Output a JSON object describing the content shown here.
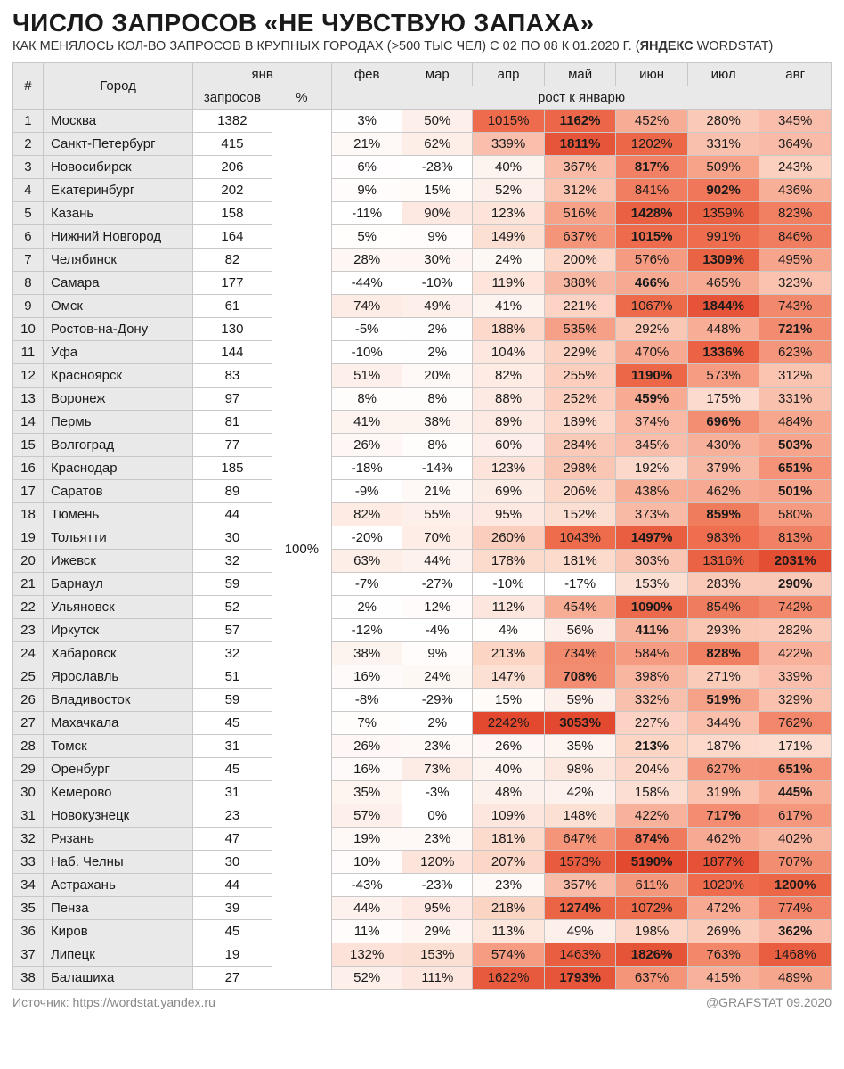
{
  "title": "ЧИСЛО ЗАПРОСОВ «НЕ ЧУВСТВУЮ ЗАПАХА»",
  "subtitle_plain": "КАК МЕНЯЛОСЬ КОЛ-ВО ЗАПРОСОВ В КРУПНЫХ ГОРОДАХ (>500 ТЫС ЧЕЛ) С 02 ПО 08 К 01.2020 Г. (",
  "subtitle_bold": "ЯНДЕКС",
  "subtitle_tail": " WORDSTAT)",
  "headers": {
    "num": "#",
    "city": "Город",
    "jan": "янв",
    "requests": "запросов",
    "pct": "%",
    "growth": "рост к январю",
    "months": [
      "фев",
      "мар",
      "апр",
      "май",
      "июн",
      "июл",
      "авг"
    ]
  },
  "base_pct": "100%",
  "heat": {
    "min_color": "#ffffff",
    "low_color": "#fde9e3",
    "mid_color": "#f8b69f",
    "high_color": "#ee6c4d",
    "max_color": "#e2492f",
    "min": -50,
    "max": 2200
  },
  "rows": [
    {
      "n": 1,
      "city": "Москва",
      "req": 1382,
      "v": [
        3,
        50,
        1015,
        1162,
        452,
        280,
        345
      ]
    },
    {
      "n": 2,
      "city": "Санкт-Петербург",
      "req": 415,
      "v": [
        21,
        62,
        339,
        1811,
        1202,
        331,
        364
      ]
    },
    {
      "n": 3,
      "city": "Новосибирск",
      "req": 206,
      "v": [
        6,
        -28,
        40,
        367,
        817,
        509,
        243
      ]
    },
    {
      "n": 4,
      "city": "Екатеринбург",
      "req": 202,
      "v": [
        9,
        15,
        52,
        312,
        841,
        902,
        436
      ]
    },
    {
      "n": 5,
      "city": "Казань",
      "req": 158,
      "v": [
        -11,
        90,
        123,
        516,
        1428,
        1359,
        823
      ]
    },
    {
      "n": 6,
      "city": "Нижний Новгород",
      "req": 164,
      "v": [
        5,
        9,
        149,
        637,
        1015,
        991,
        846
      ]
    },
    {
      "n": 7,
      "city": "Челябинск",
      "req": 82,
      "v": [
        28,
        30,
        24,
        200,
        576,
        1309,
        495
      ]
    },
    {
      "n": 8,
      "city": "Самара",
      "req": 177,
      "v": [
        -44,
        -10,
        119,
        388,
        466,
        465,
        323
      ]
    },
    {
      "n": 9,
      "city": "Омск",
      "req": 61,
      "v": [
        74,
        49,
        41,
        221,
        1067,
        1844,
        743
      ]
    },
    {
      "n": 10,
      "city": "Ростов-на-Дону",
      "req": 130,
      "v": [
        -5,
        2,
        188,
        535,
        292,
        448,
        721
      ]
    },
    {
      "n": 11,
      "city": "Уфа",
      "req": 144,
      "v": [
        -10,
        2,
        104,
        229,
        470,
        1336,
        623
      ]
    },
    {
      "n": 12,
      "city": "Красноярск",
      "req": 83,
      "v": [
        51,
        20,
        82,
        255,
        1190,
        573,
        312
      ]
    },
    {
      "n": 13,
      "city": "Воронеж",
      "req": 97,
      "v": [
        8,
        8,
        88,
        252,
        459,
        175,
        331
      ]
    },
    {
      "n": 14,
      "city": "Пермь",
      "req": 81,
      "v": [
        41,
        38,
        89,
        189,
        374,
        696,
        484
      ]
    },
    {
      "n": 15,
      "city": "Волгоград",
      "req": 77,
      "v": [
        26,
        8,
        60,
        284,
        345,
        430,
        503
      ]
    },
    {
      "n": 16,
      "city": "Краснодар",
      "req": 185,
      "v": [
        -18,
        -14,
        123,
        298,
        192,
        379,
        651
      ]
    },
    {
      "n": 17,
      "city": "Саратов",
      "req": 89,
      "v": [
        -9,
        21,
        69,
        206,
        438,
        462,
        501
      ]
    },
    {
      "n": 18,
      "city": "Тюмень",
      "req": 44,
      "v": [
        82,
        55,
        95,
        152,
        373,
        859,
        580
      ]
    },
    {
      "n": 19,
      "city": "Тольятти",
      "req": 30,
      "v": [
        -20,
        70,
        260,
        1043,
        1497,
        983,
        813
      ]
    },
    {
      "n": 20,
      "city": "Ижевск",
      "req": 32,
      "v": [
        63,
        44,
        178,
        181,
        303,
        1316,
        2031
      ]
    },
    {
      "n": 21,
      "city": "Барнаул",
      "req": 59,
      "v": [
        -7,
        -27,
        -10,
        -17,
        153,
        283,
        290
      ]
    },
    {
      "n": 22,
      "city": "Ульяновск",
      "req": 52,
      "v": [
        2,
        12,
        112,
        454,
        1090,
        854,
        742
      ]
    },
    {
      "n": 23,
      "city": "Иркутск",
      "req": 57,
      "v": [
        -12,
        -4,
        4,
        56,
        411,
        293,
        282
      ]
    },
    {
      "n": 24,
      "city": "Хабаровск",
      "req": 32,
      "v": [
        38,
        9,
        213,
        734,
        584,
        828,
        422
      ]
    },
    {
      "n": 25,
      "city": "Ярославль",
      "req": 51,
      "v": [
        16,
        24,
        147,
        708,
        398,
        271,
        339
      ]
    },
    {
      "n": 26,
      "city": "Владивосток",
      "req": 59,
      "v": [
        -8,
        -29,
        15,
        59,
        332,
        519,
        329
      ]
    },
    {
      "n": 27,
      "city": "Махачкала",
      "req": 45,
      "v": [
        7,
        2,
        2242,
        3053,
        227,
        344,
        762
      ]
    },
    {
      "n": 28,
      "city": "Томск",
      "req": 31,
      "v": [
        26,
        23,
        26,
        35,
        213,
        187,
        171
      ]
    },
    {
      "n": 29,
      "city": "Оренбург",
      "req": 45,
      "v": [
        16,
        73,
        40,
        98,
        204,
        627,
        651
      ]
    },
    {
      "n": 30,
      "city": "Кемерово",
      "req": 31,
      "v": [
        35,
        -3,
        48,
        42,
        158,
        319,
        445
      ]
    },
    {
      "n": 31,
      "city": "Новокузнецк",
      "req": 23,
      "v": [
        57,
        0,
        109,
        148,
        422,
        717,
        617
      ]
    },
    {
      "n": 32,
      "city": "Рязань",
      "req": 47,
      "v": [
        19,
        23,
        181,
        647,
        874,
        462,
        402
      ]
    },
    {
      "n": 33,
      "city": "Наб. Челны",
      "req": 30,
      "v": [
        10,
        120,
        207,
        1573,
        5190,
        1877,
        707
      ]
    },
    {
      "n": 34,
      "city": "Астрахань",
      "req": 44,
      "v": [
        -43,
        -23,
        23,
        357,
        611,
        1020,
        1200
      ]
    },
    {
      "n": 35,
      "city": "Пенза",
      "req": 39,
      "v": [
        44,
        95,
        218,
        1274,
        1072,
        472,
        774
      ]
    },
    {
      "n": 36,
      "city": "Киров",
      "req": 45,
      "v": [
        11,
        29,
        113,
        49,
        198,
        269,
        362
      ]
    },
    {
      "n": 37,
      "city": "Липецк",
      "req": 19,
      "v": [
        132,
        153,
        574,
        1463,
        1826,
        763,
        1468
      ]
    },
    {
      "n": 38,
      "city": "Балашиха",
      "req": 27,
      "v": [
        52,
        111,
        1622,
        1793,
        637,
        415,
        489
      ]
    }
  ],
  "footer": {
    "source": "Источник: https://wordstat.yandex.ru",
    "credit": "@GRAFSTAT 09.2020"
  }
}
